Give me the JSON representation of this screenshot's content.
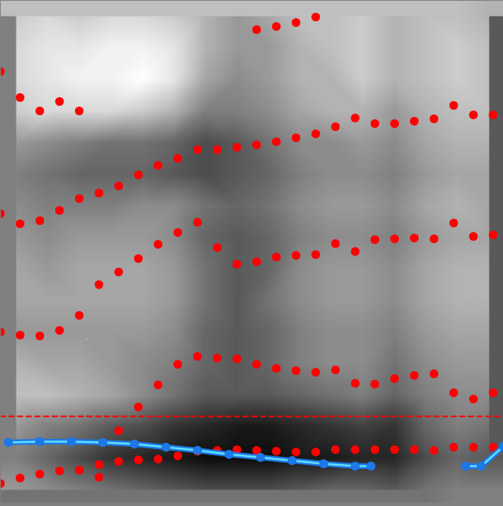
{
  "chart_data": {
    "type": "spectrogram",
    "xlim": [
      0,
      638
    ],
    "ylim": [
      0,
      641
    ],
    "xticks": [],
    "yticks": [],
    "tick_labels": false,
    "grid": false,
    "heatmap": {
      "x": [
        20,
        60,
        100,
        140,
        180,
        220,
        260,
        300,
        340,
        380,
        420,
        460,
        500,
        540,
        580,
        620
      ],
      "y": [
        621,
        581,
        541,
        501,
        461,
        421,
        381,
        341,
        301,
        261,
        221,
        181,
        141,
        101,
        61,
        21
      ],
      "zlim": [
        0,
        1
      ],
      "values": [
        [
          0.8,
          0.85,
          0.8,
          0.85,
          0.85,
          0.8,
          0.7,
          0.6,
          0.65,
          0.75,
          0.75,
          0.8,
          0.7,
          0.75,
          0.75,
          0.7
        ],
        [
          0.85,
          0.9,
          0.9,
          0.95,
          0.95,
          0.9,
          0.7,
          0.6,
          0.6,
          0.7,
          0.75,
          0.8,
          0.7,
          0.75,
          0.8,
          0.75
        ],
        [
          0.85,
          0.9,
          0.95,
          0.95,
          1,
          0.9,
          0.65,
          0.55,
          0.6,
          0.7,
          0.7,
          0.8,
          0.7,
          0.75,
          0.8,
          0.75
        ],
        [
          0.8,
          0.85,
          0.85,
          0.85,
          0.8,
          0.7,
          0.5,
          0.5,
          0.55,
          0.65,
          0.7,
          0.7,
          0.6,
          0.7,
          0.75,
          0.75
        ],
        [
          0.6,
          0.55,
          0.5,
          0.45,
          0.45,
          0.4,
          0.3,
          0.35,
          0.45,
          0.55,
          0.55,
          0.6,
          0.55,
          0.65,
          0.7,
          0.7
        ],
        [
          0.5,
          0.45,
          0.4,
          0.4,
          0.4,
          0.35,
          0.3,
          0.35,
          0.4,
          0.5,
          0.55,
          0.55,
          0.5,
          0.6,
          0.65,
          0.65
        ],
        [
          0.55,
          0.5,
          0.5,
          0.5,
          0.55,
          0.55,
          0.45,
          0.4,
          0.45,
          0.55,
          0.6,
          0.6,
          0.55,
          0.65,
          0.7,
          0.65
        ],
        [
          0.6,
          0.55,
          0.6,
          0.6,
          0.6,
          0.55,
          0.4,
          0.35,
          0.4,
          0.5,
          0.55,
          0.55,
          0.5,
          0.6,
          0.65,
          0.65
        ],
        [
          0.65,
          0.6,
          0.65,
          0.65,
          0.65,
          0.6,
          0.45,
          0.35,
          0.4,
          0.55,
          0.6,
          0.6,
          0.55,
          0.65,
          0.7,
          0.7
        ],
        [
          0.65,
          0.65,
          0.65,
          0.65,
          0.65,
          0.6,
          0.45,
          0.35,
          0.45,
          0.55,
          0.6,
          0.6,
          0.55,
          0.65,
          0.7,
          0.7
        ],
        [
          0.6,
          0.6,
          0.6,
          0.6,
          0.6,
          0.55,
          0.4,
          0.35,
          0.4,
          0.5,
          0.55,
          0.55,
          0.5,
          0.6,
          0.65,
          0.65
        ],
        [
          0.7,
          0.65,
          0.65,
          0.6,
          0.55,
          0.5,
          0.4,
          0.35,
          0.4,
          0.5,
          0.55,
          0.55,
          0.45,
          0.55,
          0.6,
          0.6
        ],
        [
          0.75,
          0.75,
          0.7,
          0.65,
          0.55,
          0.45,
          0.35,
          0.35,
          0.35,
          0.4,
          0.45,
          0.5,
          0.4,
          0.5,
          0.55,
          0.55
        ],
        [
          0.6,
          0.5,
          0.45,
          0.35,
          0.3,
          0.2,
          0.15,
          0.1,
          0.1,
          0.15,
          0.2,
          0.25,
          0.2,
          0.4,
          0.5,
          0.45
        ],
        [
          0.5,
          0.4,
          0.3,
          0.2,
          0.15,
          0.1,
          0.05,
          0.05,
          0.05,
          0.1,
          0.1,
          0.15,
          0.15,
          0.3,
          0.4,
          0.35
        ],
        [
          0.6,
          0.55,
          0.5,
          0.45,
          0.4,
          0.35,
          0.3,
          0.3,
          0.3,
          0.35,
          0.4,
          0.4,
          0.35,
          0.45,
          0.5,
          0.5
        ]
      ]
    },
    "series": [
      {
        "type": "scatter",
        "color": "#ff0000",
        "marker": "circle",
        "x": [
          0,
          25,
          50,
          75,
          100,
          125,
          125,
          150,
          175,
          200,
          225,
          250,
          275,
          300,
          325,
          350,
          375,
          400,
          425,
          450,
          475,
          500,
          525,
          550,
          575,
          600,
          625,
          150,
          175,
          200,
          225,
          250,
          275,
          300,
          325,
          350,
          375,
          400,
          425,
          450,
          475,
          500,
          525,
          550,
          575,
          600,
          625,
          0,
          25,
          50,
          75,
          100,
          125,
          150,
          175,
          200,
          225,
          250,
          275,
          300,
          325,
          350,
          375,
          400,
          425,
          450,
          475,
          500,
          525,
          550,
          575,
          600,
          625,
          0,
          25,
          50,
          75,
          100,
          125,
          150,
          175,
          200,
          225,
          250,
          275,
          300,
          325,
          350,
          375,
          400,
          425,
          450,
          475,
          500,
          525,
          550,
          575,
          600,
          625,
          0,
          25,
          50,
          75,
          100,
          325,
          350,
          375,
          400
        ],
        "values": [
          29,
          36,
          41,
          45,
          46,
          37,
          53,
          57,
          59,
          60,
          64,
          70,
          71,
          72,
          71,
          70,
          69,
          69,
          72,
          72,
          72,
          72,
          72,
          71,
          75,
          75,
          75,
          96,
          126,
          154,
          180,
          190,
          188,
          187,
          180,
          175,
          172,
          170,
          173,
          156,
          155,
          162,
          166,
          168,
          144,
          136,
          144,
          221,
          217,
          216,
          223,
          242,
          281,
          297,
          314,
          332,
          347,
          360,
          328,
          307,
          310,
          316,
          318,
          319,
          333,
          323,
          338,
          339,
          340,
          339,
          359,
          342,
          344,
          371,
          358,
          362,
          375,
          390,
          397,
          406,
          420,
          432,
          441,
          452,
          452,
          455,
          458,
          462,
          467,
          472,
          481,
          492,
          485,
          485,
          488,
          491,
          508,
          496,
          496,
          551,
          518,
          501,
          513,
          501,
          604,
          608,
          613,
          620
        ]
      },
      {
        "type": "line",
        "color": "#1e78e6",
        "marker": "circle",
        "x": [
          10,
          50,
          90,
          130,
          170,
          210,
          250,
          290,
          330,
          370,
          410,
          450,
          470,
          530,
          590,
          610,
          638
        ],
        "values": [
          81,
          82,
          82,
          81,
          79,
          75,
          71,
          66,
          62,
          58,
          54,
          51,
          51,
          null,
          51,
          51,
          76
        ]
      },
      {
        "type": "line",
        "color": "#ff0000",
        "line_style": "dashed",
        "x": [
          0,
          638
        ],
        "values": [
          114,
          114
        ]
      }
    ]
  }
}
